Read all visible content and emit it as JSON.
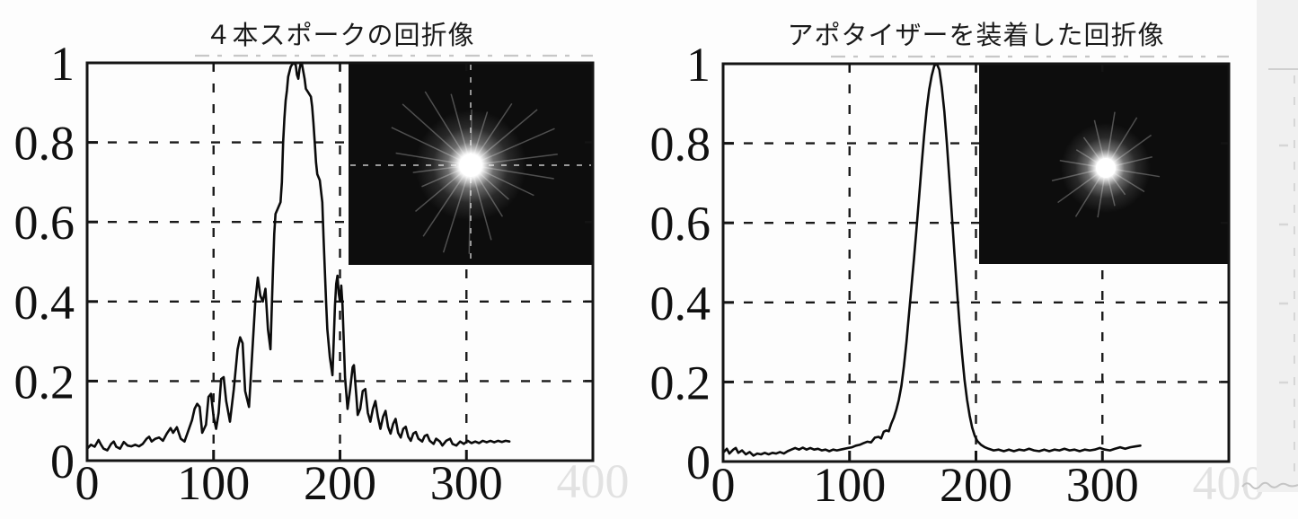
{
  "page": {
    "background": "#fdfdfd"
  },
  "colors": {
    "ink": "#141414",
    "grid": "#1a1a1a",
    "curve": "#0b0b0b",
    "label": "#101010",
    "ghost_label": "#e2e2e2",
    "inset_background": "#0d0d0d",
    "glow": "#ffffff",
    "scan_band": "#f0f0f0",
    "scan_band_marks": "#d6d6d6"
  },
  "chart_data": [
    {
      "type": "line",
      "title": "４本スポークの回折像",
      "xlabel": "",
      "ylabel": "",
      "xlim": [
        0,
        400
      ],
      "ylim": [
        0,
        1
      ],
      "grid": {
        "style": "dashed",
        "x_values": [
          100,
          200,
          300
        ],
        "y_values": [
          0.2,
          0.4,
          0.6,
          0.8
        ]
      },
      "x_ticks": {
        "values": [
          0,
          100,
          200,
          300
        ],
        "labels": [
          "0",
          "100",
          "200",
          "300"
        ]
      },
      "ghost_tick": {
        "value": 400,
        "label": "400"
      },
      "y_ticks": {
        "values": [
          0,
          0.2,
          0.4,
          0.6,
          0.8,
          1
        ],
        "labels": [
          "0",
          "0.2",
          "0.4",
          "0.6",
          "0.8",
          "1"
        ]
      },
      "legend": "none",
      "inset": {
        "name": "diffraction-pattern-image",
        "appearance": "starburst",
        "has_dashed_crosshair": true,
        "ray_count": 22
      },
      "series": [
        {
          "name": "diffraction-intensity-profile",
          "x": [
            0,
            3,
            6,
            9,
            11,
            13,
            16,
            19,
            21,
            23,
            26,
            29,
            32,
            35,
            38,
            41,
            44,
            47,
            49,
            51,
            54,
            57,
            60,
            63,
            66,
            68,
            71,
            74,
            77,
            80,
            83,
            85,
            87,
            89,
            91,
            94,
            96,
            98,
            100,
            102,
            104,
            106,
            108,
            110,
            113,
            116,
            119,
            121,
            123,
            125,
            128,
            130,
            133,
            135,
            137,
            139,
            141,
            143,
            145,
            146,
            147,
            148,
            149,
            151,
            153,
            154,
            155,
            156,
            157,
            158,
            159,
            161,
            163,
            165,
            166,
            167,
            168,
            169,
            170,
            172,
            173,
            175,
            177,
            178,
            179,
            180,
            181,
            182,
            184,
            186,
            187,
            188,
            189,
            190,
            192,
            194,
            195,
            196,
            197,
            198,
            199,
            200,
            201,
            202,
            203,
            204,
            206,
            208,
            210,
            211,
            213,
            214,
            216,
            218,
            220,
            222,
            224,
            226,
            228,
            230,
            232,
            234,
            236,
            238,
            240,
            242,
            244,
            246,
            248,
            250,
            252,
            254,
            256,
            258,
            260,
            262,
            265,
            267,
            269,
            271,
            274,
            276,
            279,
            281,
            284,
            287,
            289,
            292,
            295,
            298,
            301,
            304,
            307,
            310,
            313,
            316,
            319,
            322,
            325,
            328,
            331,
            334
          ],
          "y": [
            0.03,
            0.04,
            0.035,
            0.052,
            0.04,
            0.03,
            0.026,
            0.042,
            0.048,
            0.035,
            0.03,
            0.047,
            0.038,
            0.036,
            0.04,
            0.036,
            0.042,
            0.055,
            0.06,
            0.048,
            0.055,
            0.058,
            0.05,
            0.068,
            0.082,
            0.07,
            0.084,
            0.055,
            0.048,
            0.075,
            0.102,
            0.13,
            0.143,
            0.135,
            0.07,
            0.09,
            0.16,
            0.168,
            0.11,
            0.08,
            0.12,
            0.205,
            0.21,
            0.15,
            0.098,
            0.18,
            0.28,
            0.31,
            0.295,
            0.175,
            0.135,
            0.24,
            0.4,
            0.46,
            0.415,
            0.4,
            0.432,
            0.33,
            0.28,
            0.38,
            0.48,
            0.57,
            0.62,
            0.635,
            0.65,
            0.7,
            0.8,
            0.86,
            0.905,
            0.93,
            0.965,
            0.99,
            1.0,
            0.995,
            0.97,
            0.96,
            0.985,
            1.0,
            0.995,
            0.96,
            0.935,
            0.925,
            0.915,
            0.89,
            0.85,
            0.8,
            0.75,
            0.72,
            0.705,
            0.65,
            0.56,
            0.48,
            0.4,
            0.33,
            0.26,
            0.215,
            0.3,
            0.39,
            0.445,
            0.465,
            0.42,
            0.4,
            0.44,
            0.39,
            0.3,
            0.21,
            0.13,
            0.18,
            0.235,
            0.24,
            0.16,
            0.115,
            0.13,
            0.175,
            0.18,
            0.12,
            0.098,
            0.13,
            0.15,
            0.11,
            0.08,
            0.11,
            0.125,
            0.085,
            0.068,
            0.092,
            0.105,
            0.07,
            0.058,
            0.08,
            0.085,
            0.06,
            0.05,
            0.068,
            0.072,
            0.055,
            0.048,
            0.062,
            0.065,
            0.05,
            0.042,
            0.055,
            0.048,
            0.038,
            0.05,
            0.055,
            0.042,
            0.038,
            0.048,
            0.042,
            0.05,
            0.044,
            0.048,
            0.044,
            0.05,
            0.046,
            0.05,
            0.046,
            0.05,
            0.047,
            0.05,
            0.048
          ]
        }
      ]
    },
    {
      "type": "line",
      "title": "アポタイザーを装着した回折像",
      "xlabel": "",
      "ylabel": "",
      "xlim": [
        0,
        400
      ],
      "ylim": [
        0,
        1
      ],
      "grid": {
        "style": "dashed",
        "x_values": [
          100,
          200,
          300
        ],
        "y_values": [
          0.2,
          0.4,
          0.6,
          0.8
        ]
      },
      "x_ticks": {
        "values": [
          0,
          100,
          200,
          300
        ],
        "labels": [
          "0",
          "100",
          "200",
          "300"
        ]
      },
      "ghost_tick": {
        "value": 400,
        "label": "400"
      },
      "y_ticks": {
        "values": [
          0,
          0.2,
          0.4,
          0.6,
          0.8,
          1
        ],
        "labels": [
          "0",
          "0.2",
          "0.4",
          "0.6",
          "0.8",
          "1"
        ]
      },
      "legend": "none",
      "inset": {
        "name": "diffraction-pattern-image",
        "appearance": "starburst",
        "has_dashed_crosshair": false,
        "ray_count": 16
      },
      "series": [
        {
          "name": "apodized-intensity-profile",
          "x": [
            0,
            3,
            5,
            8,
            10,
            12,
            15,
            18,
            21,
            24,
            27,
            30,
            33,
            36,
            39,
            42,
            45,
            48,
            51,
            54,
            57,
            60,
            63,
            66,
            69,
            72,
            75,
            78,
            81,
            84,
            87,
            90,
            93,
            96,
            99,
            102,
            105,
            108,
            111,
            114,
            117,
            120,
            123,
            125,
            127,
            129,
            131,
            133,
            135,
            137,
            139,
            141,
            143,
            145,
            147,
            149,
            151,
            153,
            155,
            157,
            159,
            161,
            163,
            165,
            167,
            169,
            171,
            173,
            175,
            177,
            179,
            181,
            183,
            185,
            187,
            189,
            191,
            193,
            195,
            197,
            199,
            201,
            204,
            207,
            210,
            214,
            218,
            222,
            226,
            230,
            234,
            238,
            242,
            246,
            250,
            254,
            258,
            262,
            266,
            270,
            274,
            278,
            282,
            286,
            290,
            294,
            298,
            302,
            306,
            310,
            314,
            318,
            322,
            326,
            330
          ],
          "y": [
            0.022,
            0.032,
            0.02,
            0.03,
            0.034,
            0.022,
            0.028,
            0.018,
            0.024,
            0.015,
            0.02,
            0.018,
            0.022,
            0.018,
            0.022,
            0.02,
            0.024,
            0.02,
            0.026,
            0.03,
            0.034,
            0.03,
            0.035,
            0.03,
            0.034,
            0.03,
            0.032,
            0.028,
            0.03,
            0.026,
            0.03,
            0.028,
            0.03,
            0.032,
            0.034,
            0.036,
            0.04,
            0.042,
            0.046,
            0.05,
            0.048,
            0.06,
            0.062,
            0.058,
            0.075,
            0.078,
            0.076,
            0.095,
            0.11,
            0.13,
            0.155,
            0.19,
            0.24,
            0.3,
            0.37,
            0.44,
            0.51,
            0.585,
            0.665,
            0.745,
            0.82,
            0.885,
            0.935,
            0.97,
            0.995,
            1.0,
            0.985,
            0.94,
            0.88,
            0.8,
            0.71,
            0.615,
            0.52,
            0.43,
            0.345,
            0.27,
            0.205,
            0.155,
            0.115,
            0.085,
            0.065,
            0.052,
            0.042,
            0.036,
            0.032,
            0.028,
            0.03,
            0.026,
            0.03,
            0.026,
            0.03,
            0.028,
            0.032,
            0.028,
            0.026,
            0.03,
            0.026,
            0.03,
            0.028,
            0.032,
            0.028,
            0.03,
            0.026,
            0.03,
            0.028,
            0.03,
            0.034,
            0.03,
            0.028,
            0.032,
            0.036,
            0.032,
            0.036,
            0.038,
            0.04
          ]
        }
      ]
    }
  ]
}
